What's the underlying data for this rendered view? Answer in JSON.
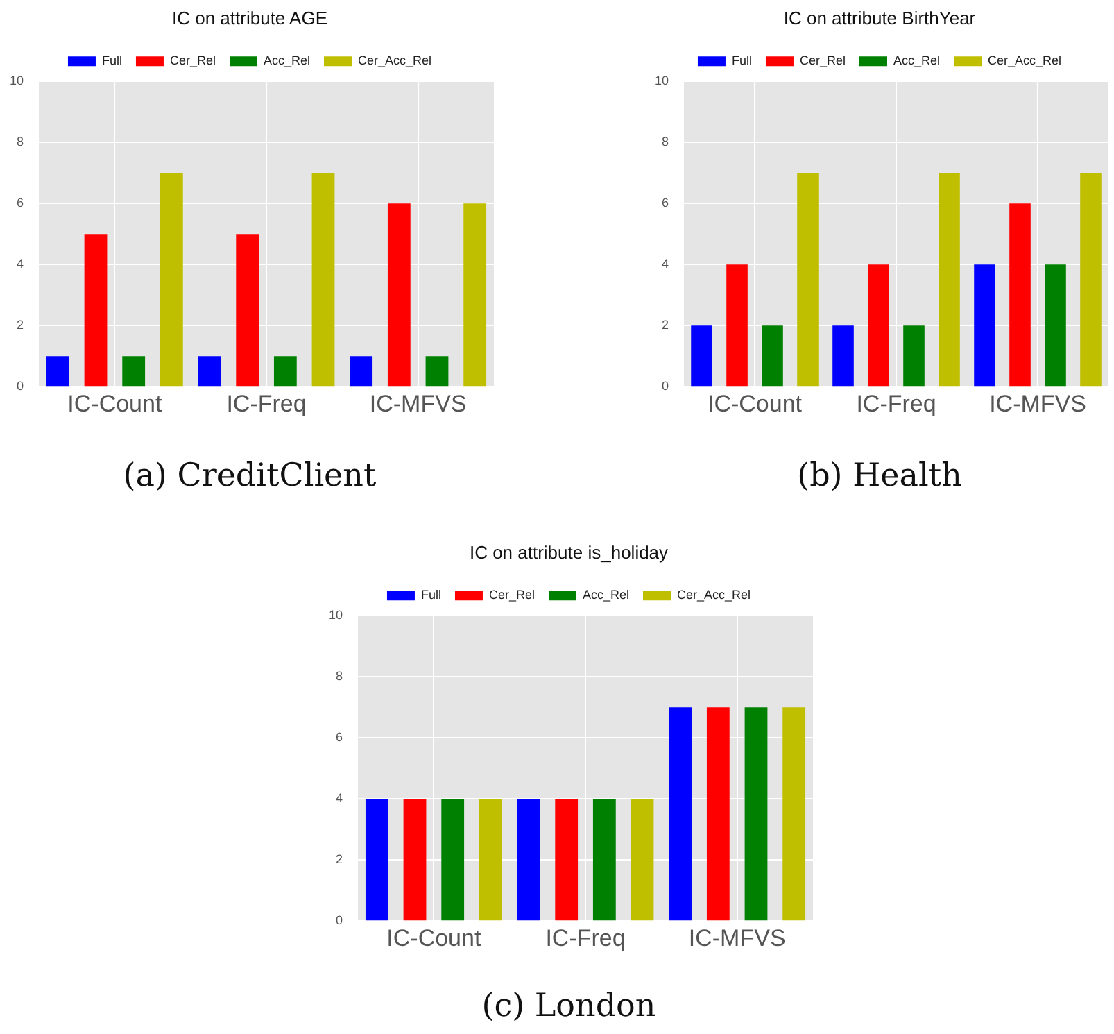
{
  "chart_data": [
    {
      "type": "bar",
      "title": "IC on attribute AGE",
      "categories": [
        "IC-Count",
        "IC-Freq",
        "IC-MFVS"
      ],
      "series": [
        {
          "name": "Full",
          "color": "#0000ff",
          "values": [
            1,
            1,
            1
          ]
        },
        {
          "name": "Cer_Rel",
          "color": "#ff0000",
          "values": [
            5,
            5,
            6
          ]
        },
        {
          "name": "Acc_Rel",
          "color": "#008000",
          "values": [
            1,
            1,
            1
          ]
        },
        {
          "name": "Cer_Acc_Rel",
          "color": "#bfbf00",
          "values": [
            7,
            7,
            6
          ]
        }
      ],
      "ylim": [
        0,
        10
      ],
      "yticks": [
        0,
        2,
        4,
        6,
        8,
        10
      ],
      "grid": true,
      "legend": "top",
      "annotations": [
        "(a) CreditClient"
      ]
    },
    {
      "type": "bar",
      "title": "IC on attribute BirthYear",
      "categories": [
        "IC-Count",
        "IC-Freq",
        "IC-MFVS"
      ],
      "series": [
        {
          "name": "Full",
          "color": "#0000ff",
          "values": [
            2,
            2,
            4
          ]
        },
        {
          "name": "Cer_Rel",
          "color": "#ff0000",
          "values": [
            4,
            4,
            6
          ]
        },
        {
          "name": "Acc_Rel",
          "color": "#008000",
          "values": [
            2,
            2,
            4
          ]
        },
        {
          "name": "Cer_Acc_Rel",
          "color": "#bfbf00",
          "values": [
            7,
            7,
            7
          ]
        }
      ],
      "ylim": [
        0,
        10
      ],
      "yticks": [
        0,
        2,
        4,
        6,
        8,
        10
      ],
      "grid": true,
      "legend": "top",
      "annotations": [
        "(b) Health"
      ]
    },
    {
      "type": "bar",
      "title": "IC on attribute is_holiday",
      "categories": [
        "IC-Count",
        "IC-Freq",
        "IC-MFVS"
      ],
      "series": [
        {
          "name": "Full",
          "color": "#0000ff",
          "values": [
            4,
            4,
            7
          ]
        },
        {
          "name": "Cer_Rel",
          "color": "#ff0000",
          "values": [
            4,
            4,
            7
          ]
        },
        {
          "name": "Acc_Rel",
          "color": "#008000",
          "values": [
            4,
            4,
            7
          ]
        },
        {
          "name": "Cer_Acc_Rel",
          "color": "#bfbf00",
          "values": [
            4,
            4,
            7
          ]
        }
      ],
      "ylim": [
        0,
        10
      ],
      "yticks": [
        0,
        2,
        4,
        6,
        8,
        10
      ],
      "grid": true,
      "legend": "top",
      "annotations": [
        "(c) London"
      ]
    }
  ]
}
